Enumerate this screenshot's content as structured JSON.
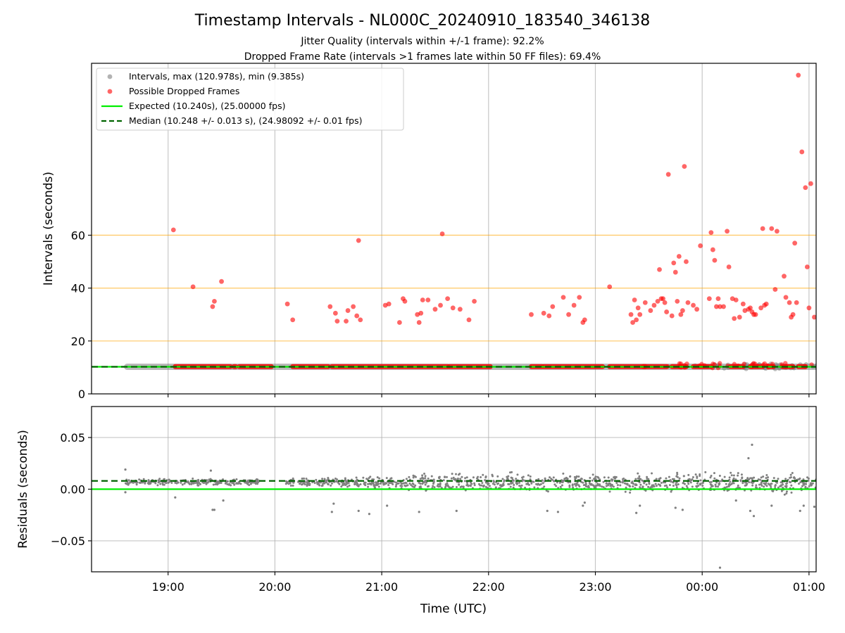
{
  "figure": {
    "title": "Timestamp Intervals - NL000C_20240910_183540_346138",
    "subtitle_jitter": "Jitter Quality (intervals within +/-1 frame): 92.2%",
    "subtitle_dropped": "Dropped Frame Rate (intervals >1 frames late within 50 FF files): 69.4%",
    "xlabel": "Time (UTC)"
  },
  "colors": {
    "intervals": "#808080",
    "dropped": "#ff0000",
    "expected": "#00ee00",
    "median": "#006400",
    "threshold": "#ffa500",
    "grid": "#b0b0b0"
  },
  "chart_data": [
    {
      "type": "scatter",
      "panel": "intervals",
      "ylabel": "Intervals (seconds)",
      "xlim": [
        "18:17",
        "01:04"
      ],
      "ylim": [
        0,
        125
      ],
      "x_ticks": [
        "19:00",
        "20:00",
        "21:00",
        "22:00",
        "23:00",
        "00:00",
        "01:00"
      ],
      "y_ticks": [
        "0",
        "20",
        "40",
        "60"
      ],
      "grid": "vertical",
      "legend_position": "top-left",
      "legend": {
        "intervals": "Intervals, max (120.978s), min (9.385s)",
        "dropped": "Possible Dropped Frames",
        "expected": "Expected (10.240s), (25.00000 fps)",
        "median": "Median (10.248 +/- 0.013 s), (24.98092 +/- 0.01 fps)"
      },
      "expected_interval": 10.24,
      "median_interval": 10.248,
      "threshold_lines": [
        20,
        40,
        60
      ],
      "interval_band": {
        "start": "18:37",
        "end": "01:04",
        "value": 10.24
      },
      "dropped_runs": [
        {
          "start": "19:04",
          "end": "19:35",
          "value": 10.3
        },
        {
          "start": "19:37",
          "end": "19:38",
          "value": 10.3
        },
        {
          "start": "19:40",
          "end": "19:58",
          "value": 10.3
        },
        {
          "start": "20:10",
          "end": "20:30",
          "value": 10.3
        },
        {
          "start": "20:32",
          "end": "21:37",
          "value": 10.3
        },
        {
          "start": "21:38",
          "end": "22:01",
          "value": 10.3
        },
        {
          "start": "22:24",
          "end": "22:30",
          "value": 10.3
        },
        {
          "start": "22:31",
          "end": "23:04",
          "value": 10.3
        },
        {
          "start": "23:08",
          "end": "23:28",
          "value": 10.3
        },
        {
          "start": "23:27",
          "end": "23:40",
          "value": 10.3
        },
        {
          "start": "23:43",
          "end": "23:51",
          "value": 10.3
        },
        {
          "start": "23:55",
          "end": "00:05",
          "value": 10.3
        },
        {
          "start": "00:16",
          "end": "00:23",
          "value": 10.3
        },
        {
          "start": "00:27",
          "end": "00:34",
          "value": 10.3
        },
        {
          "start": "00:37",
          "end": "00:40",
          "value": 10.3
        },
        {
          "start": "00:45",
          "end": "00:51",
          "value": 10.3
        },
        {
          "start": "00:54",
          "end": "00:58",
          "value": 10.3
        }
      ],
      "dropped_points": [
        [
          "19:03",
          62
        ],
        [
          "19:14",
          40.5
        ],
        [
          "19:25",
          33
        ],
        [
          "19:26",
          35
        ],
        [
          "19:30",
          42.5
        ],
        [
          "20:07",
          34
        ],
        [
          "20:10",
          28
        ],
        [
          "20:31",
          33
        ],
        [
          "20:34",
          30.5
        ],
        [
          "20:35",
          27.5
        ],
        [
          "20:40",
          27.5
        ],
        [
          "20:41",
          31.5
        ],
        [
          "20:44",
          33
        ],
        [
          "20:46",
          29.5
        ],
        [
          "20:47",
          58
        ],
        [
          "20:48",
          28
        ],
        [
          "21:02",
          33.5
        ],
        [
          "21:04",
          34
        ],
        [
          "21:10",
          27
        ],
        [
          "21:12",
          36
        ],
        [
          "21:13",
          35
        ],
        [
          "21:20",
          30
        ],
        [
          "21:21",
          27
        ],
        [
          "21:22",
          30.5
        ],
        [
          "21:23",
          35.5
        ],
        [
          "21:26",
          35.5
        ],
        [
          "21:30",
          32
        ],
        [
          "21:33",
          33.5
        ],
        [
          "21:34",
          60.5
        ],
        [
          "21:37",
          36
        ],
        [
          "21:40",
          32.5
        ],
        [
          "21:44",
          32
        ],
        [
          "21:49",
          28
        ],
        [
          "21:52",
          35
        ],
        [
          "22:24",
          30
        ],
        [
          "22:31",
          30.5
        ],
        [
          "22:34",
          29.5
        ],
        [
          "22:36",
          33
        ],
        [
          "22:42",
          36.5
        ],
        [
          "22:45",
          30
        ],
        [
          "22:48",
          33.5
        ],
        [
          "22:51",
          36.5
        ],
        [
          "22:53",
          27
        ],
        [
          "22:54",
          28
        ],
        [
          "23:08",
          40.5
        ],
        [
          "23:20",
          30
        ],
        [
          "23:21",
          27
        ],
        [
          "23:22",
          35.5
        ],
        [
          "23:23",
          28
        ],
        [
          "23:24",
          32.5
        ],
        [
          "23:25",
          30
        ],
        [
          "23:28",
          34.5
        ],
        [
          "23:31",
          31.5
        ],
        [
          "23:33",
          33.5
        ],
        [
          "23:35",
          35
        ],
        [
          "23:36",
          47
        ],
        [
          "23:37",
          36
        ],
        [
          "23:38",
          36
        ],
        [
          "23:39",
          34.5
        ],
        [
          "23:40",
          31
        ],
        [
          "23:41",
          83
        ],
        [
          "23:43",
          29.5
        ],
        [
          "23:44",
          49.5
        ],
        [
          "23:45",
          46
        ],
        [
          "23:46",
          35
        ],
        [
          "23:47",
          52
        ],
        [
          "23:48",
          30
        ],
        [
          "23:49",
          31.5
        ],
        [
          "23:50",
          86
        ],
        [
          "23:51",
          50
        ],
        [
          "23:52",
          34.5
        ],
        [
          "23:55",
          33.5
        ],
        [
          "23:57",
          32
        ],
        [
          "23:59",
          56
        ],
        [
          "00:04",
          36
        ],
        [
          "00:05",
          61
        ],
        [
          "00:06",
          54.5
        ],
        [
          "00:07",
          50.5
        ],
        [
          "00:08",
          33
        ],
        [
          "00:09",
          36
        ],
        [
          "00:10",
          33
        ],
        [
          "00:12",
          33
        ],
        [
          "00:14",
          61.5
        ],
        [
          "00:15",
          48
        ],
        [
          "00:17",
          36
        ],
        [
          "00:18",
          28.5
        ],
        [
          "00:19",
          35.5
        ],
        [
          "00:21",
          29
        ],
        [
          "00:23",
          34
        ],
        [
          "00:24",
          31.5
        ],
        [
          "00:26",
          32
        ],
        [
          "00:27",
          32.5
        ],
        [
          "00:28",
          31
        ],
        [
          "00:29",
          30
        ],
        [
          "00:30",
          30
        ],
        [
          "00:33",
          32.5
        ],
        [
          "00:34",
          62.5
        ],
        [
          "00:35",
          33.5
        ],
        [
          "00:36",
          34
        ],
        [
          "00:39",
          62.5
        ],
        [
          "00:41",
          39.5
        ],
        [
          "00:42",
          61.5
        ],
        [
          "00:46",
          44.5
        ],
        [
          "00:47",
          36.5
        ],
        [
          "00:49",
          34.5
        ],
        [
          "00:50",
          29
        ],
        [
          "00:51",
          30
        ],
        [
          "00:52",
          57
        ],
        [
          "00:53",
          34.5
        ],
        [
          "00:54",
          120.5
        ],
        [
          "00:56",
          91.5
        ],
        [
          "00:58",
          78
        ],
        [
          "00:59",
          48
        ],
        [
          "01:00",
          32.5
        ],
        [
          "01:01",
          79.5
        ],
        [
          "01:03",
          29
        ]
      ]
    },
    {
      "type": "scatter",
      "panel": "residuals",
      "ylabel": "Residuals (seconds)",
      "xlim": [
        "18:17",
        "01:04"
      ],
      "ylim": [
        -0.08,
        0.08
      ],
      "x_ticks": [
        "19:00",
        "20:00",
        "21:00",
        "22:00",
        "23:00",
        "00:00",
        "01:00"
      ],
      "y_ticks": [
        "0.05",
        "0.00",
        "−0.05"
      ],
      "grid": "both",
      "expected_residual": 0.0,
      "median_residual": 0.008,
      "residual_segments": [
        {
          "start": "18:36",
          "end": "19:52",
          "center": 0.007,
          "spread": 0.004
        },
        {
          "start": "20:05",
          "end": "20:35",
          "center": 0.007,
          "spread": 0.005
        },
        {
          "start": "20:35",
          "end": "21:15",
          "center": 0.006,
          "spread": 0.007
        },
        {
          "start": "21:15",
          "end": "23:05",
          "center": 0.006,
          "spread": 0.012
        },
        {
          "start": "23:05",
          "end": "01:04",
          "center": 0.006,
          "spread": 0.013
        }
      ],
      "residual_outliers": [
        [
          "18:36",
          0.019
        ],
        [
          "18:36",
          -0.003
        ],
        [
          "19:04",
          -0.008
        ],
        [
          "19:25",
          -0.02
        ],
        [
          "19:26",
          -0.02
        ],
        [
          "19:24",
          0.018
        ],
        [
          "19:31",
          -0.011
        ],
        [
          "20:32",
          -0.022
        ],
        [
          "20:33",
          -0.014
        ],
        [
          "20:47",
          -0.021
        ],
        [
          "20:53",
          -0.024
        ],
        [
          "21:03",
          -0.016
        ],
        [
          "21:21",
          -0.022
        ],
        [
          "21:42",
          -0.021
        ],
        [
          "22:33",
          -0.021
        ],
        [
          "22:39",
          -0.022
        ],
        [
          "22:53",
          -0.016
        ],
        [
          "22:54",
          -0.013
        ],
        [
          "23:23",
          -0.023
        ],
        [
          "23:25",
          -0.016
        ],
        [
          "23:45",
          -0.018
        ],
        [
          "23:49",
          -0.02
        ],
        [
          "00:10",
          -0.076
        ],
        [
          "00:19",
          -0.011
        ],
        [
          "00:26",
          0.03
        ],
        [
          "00:27",
          -0.021
        ],
        [
          "00:28",
          0.043
        ],
        [
          "00:29",
          -0.026
        ],
        [
          "00:39",
          -0.016
        ],
        [
          "00:55",
          -0.021
        ],
        [
          "00:57",
          -0.016
        ],
        [
          "01:03",
          -0.017
        ]
      ]
    }
  ]
}
